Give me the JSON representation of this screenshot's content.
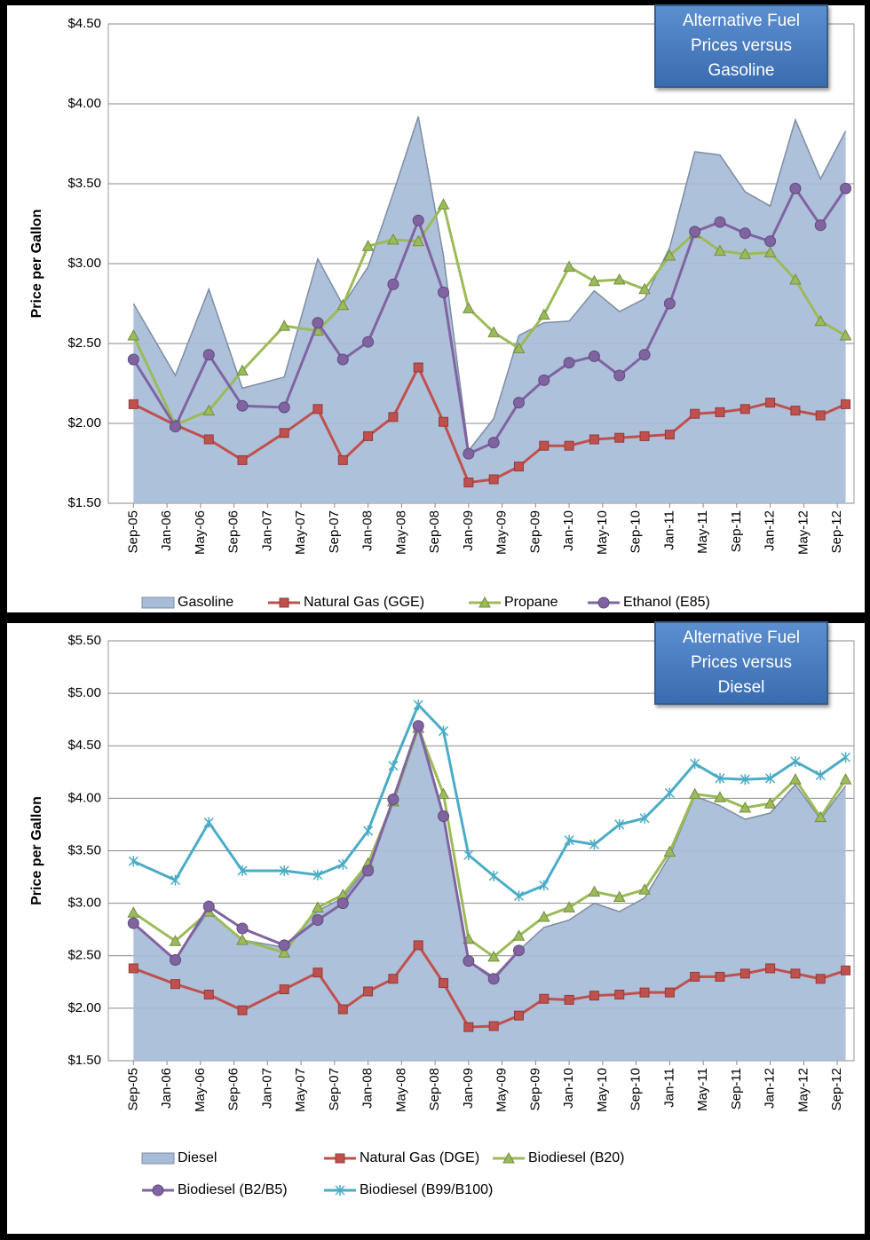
{
  "chart_data": [
    {
      "type": "line",
      "title": "Alternative Fuel Prices versus Gasoline",
      "ylabel": "Price per Gallon",
      "x": [
        "2005-09",
        "2006-02",
        "2006-06",
        "2006-10",
        "2007-03",
        "2007-07",
        "2007-10",
        "2008-01",
        "2008-04",
        "2008-07",
        "2008-10",
        "2009-01",
        "2009-04",
        "2009-07",
        "2009-10",
        "2010-01",
        "2010-04",
        "2010-07",
        "2010-10",
        "2011-01",
        "2011-04",
        "2011-07",
        "2011-10",
        "2012-01",
        "2012-04",
        "2012-07",
        "2012-10"
      ],
      "xlim": [
        "2005-06",
        "2012-11"
      ],
      "xticks": [
        {
          "value": "2005-09",
          "label": "Sep-05"
        },
        {
          "value": "2006-01",
          "label": "Jan-06"
        },
        {
          "value": "2006-05",
          "label": "May-06"
        },
        {
          "value": "2006-09",
          "label": "Sep-06"
        },
        {
          "value": "2007-01",
          "label": "Jan-07"
        },
        {
          "value": "2007-05",
          "label": "May-07"
        },
        {
          "value": "2007-09",
          "label": "Sep-07"
        },
        {
          "value": "2008-01",
          "label": "Jan-08"
        },
        {
          "value": "2008-05",
          "label": "May-08"
        },
        {
          "value": "2008-09",
          "label": "Sep-08"
        },
        {
          "value": "2009-01",
          "label": "Jan-09"
        },
        {
          "value": "2009-05",
          "label": "May-09"
        },
        {
          "value": "2009-09",
          "label": "Sep-09"
        },
        {
          "value": "2010-01",
          "label": "Jan-10"
        },
        {
          "value": "2010-05",
          "label": "May-10"
        },
        {
          "value": "2010-09",
          "label": "Sep-10"
        },
        {
          "value": "2011-01",
          "label": "Jan-11"
        },
        {
          "value": "2011-05",
          "label": "May-11"
        },
        {
          "value": "2011-09",
          "label": "Sep-11"
        },
        {
          "value": "2012-01",
          "label": "Jan-12"
        },
        {
          "value": "2012-05",
          "label": "May-12"
        },
        {
          "value": "2012-09",
          "label": "Sep-12"
        }
      ],
      "ylim": [
        1.5,
        4.5
      ],
      "yticks": [
        {
          "value": 1.5,
          "label": "$1.50"
        },
        {
          "value": 2,
          "label": "$2.00"
        },
        {
          "value": 2.5,
          "label": "$2.50"
        },
        {
          "value": 3,
          "label": "$3.00"
        },
        {
          "value": 3.5,
          "label": "$3.50"
        },
        {
          "value": 4,
          "label": "$4.00"
        },
        {
          "value": 4.5,
          "label": "$4.50"
        }
      ],
      "grid": true,
      "series": [
        {
          "name": "Gasoline",
          "type": "area",
          "color": "#a7bcd8",
          "values": [
            2.75,
            2.3,
            2.84,
            2.22,
            2.29,
            3.03,
            2.74,
            2.98,
            3.44,
            3.92,
            3.05,
            1.83,
            2.03,
            2.55,
            2.63,
            2.64,
            2.83,
            2.7,
            2.78,
            3.1,
            3.7,
            3.68,
            3.45,
            3.36,
            3.9,
            3.53,
            3.83
          ]
        },
        {
          "name": "Natural Gas (GGE)",
          "marker": "square",
          "color": "#c0504d",
          "values": [
            2.12,
            1.99,
            1.9,
            1.77,
            1.94,
            2.09,
            1.77,
            1.92,
            2.04,
            2.35,
            2.01,
            1.63,
            1.65,
            1.73,
            1.86,
            1.86,
            1.9,
            1.91,
            1.92,
            1.93,
            2.06,
            2.07,
            2.09,
            2.13,
            2.08,
            2.05,
            2.12
          ]
        },
        {
          "name": "Propane",
          "marker": "triangle",
          "color": "#9bbb59",
          "values": [
            2.55,
            1.99,
            2.08,
            2.33,
            2.61,
            2.58,
            2.74,
            3.11,
            3.15,
            3.14,
            3.37,
            2.72,
            2.57,
            2.47,
            2.68,
            2.98,
            2.89,
            2.9,
            2.84,
            3.05,
            3.19,
            3.08,
            3.06,
            3.07,
            2.9,
            2.64,
            2.55
          ]
        },
        {
          "name": "Ethanol (E85)",
          "marker": "circle",
          "color": "#8064a2",
          "values": [
            2.4,
            1.98,
            2.43,
            2.11,
            2.1,
            2.63,
            2.4,
            2.51,
            2.87,
            3.27,
            2.82,
            1.81,
            1.88,
            2.13,
            2.27,
            2.38,
            2.42,
            2.3,
            2.43,
            2.75,
            3.2,
            3.26,
            3.19,
            3.14,
            3.47,
            3.24,
            3.47
          ]
        }
      ]
    },
    {
      "type": "line",
      "title": "Alternative Fuel Prices versus Diesel",
      "ylabel": "Price per Gallon",
      "x": [
        "2005-09",
        "2006-02",
        "2006-06",
        "2006-10",
        "2007-03",
        "2007-07",
        "2007-10",
        "2008-01",
        "2008-04",
        "2008-07",
        "2008-10",
        "2009-01",
        "2009-04",
        "2009-07",
        "2009-10",
        "2010-01",
        "2010-04",
        "2010-07",
        "2010-10",
        "2011-01",
        "2011-04",
        "2011-07",
        "2011-10",
        "2012-01",
        "2012-04",
        "2012-07",
        "2012-10"
      ],
      "xlim": [
        "2005-06",
        "2012-11"
      ],
      "xticks": [
        {
          "value": "2005-09",
          "label": "Sep-05"
        },
        {
          "value": "2006-01",
          "label": "Jan-06"
        },
        {
          "value": "2006-05",
          "label": "May-06"
        },
        {
          "value": "2006-09",
          "label": "Sep-06"
        },
        {
          "value": "2007-01",
          "label": "Jan-07"
        },
        {
          "value": "2007-05",
          "label": "May-07"
        },
        {
          "value": "2007-09",
          "label": "Sep-07"
        },
        {
          "value": "2008-01",
          "label": "Jan-08"
        },
        {
          "value": "2008-05",
          "label": "May-08"
        },
        {
          "value": "2008-09",
          "label": "Sep-08"
        },
        {
          "value": "2009-01",
          "label": "Jan-09"
        },
        {
          "value": "2009-05",
          "label": "May-09"
        },
        {
          "value": "2009-09",
          "label": "Sep-09"
        },
        {
          "value": "2010-01",
          "label": "Jan-10"
        },
        {
          "value": "2010-05",
          "label": "May-10"
        },
        {
          "value": "2010-09",
          "label": "Sep-10"
        },
        {
          "value": "2011-01",
          "label": "Jan-11"
        },
        {
          "value": "2011-05",
          "label": "May-11"
        },
        {
          "value": "2011-09",
          "label": "Sep-11"
        },
        {
          "value": "2012-01",
          "label": "Jan-12"
        },
        {
          "value": "2012-05",
          "label": "May-12"
        },
        {
          "value": "2012-09",
          "label": "Sep-12"
        }
      ],
      "ylim": [
        1.5,
        5.5
      ],
      "yticks": [
        {
          "value": 1.5,
          "label": "$1.50"
        },
        {
          "value": 2,
          "label": "$2.00"
        },
        {
          "value": 2.5,
          "label": "$2.50"
        },
        {
          "value": 3,
          "label": "$3.00"
        },
        {
          "value": 3.5,
          "label": "$3.50"
        },
        {
          "value": 4,
          "label": "$4.00"
        },
        {
          "value": 4.5,
          "label": "$4.50"
        },
        {
          "value": 5,
          "label": "$5.00"
        },
        {
          "value": 5.5,
          "label": "$5.50"
        }
      ],
      "grid": true,
      "series": [
        {
          "name": "Diesel",
          "type": "area",
          "color": "#a7bcd8",
          "values": [
            2.8,
            2.47,
            2.93,
            2.65,
            2.58,
            2.93,
            3.05,
            3.35,
            3.95,
            4.65,
            3.85,
            2.45,
            2.3,
            2.55,
            2.77,
            2.84,
            3.0,
            2.92,
            3.05,
            3.45,
            4.02,
            3.93,
            3.8,
            3.86,
            4.13,
            3.8,
            4.12
          ]
        },
        {
          "name": "Natural Gas (DGE)",
          "marker": "square",
          "color": "#c0504d",
          "values": [
            2.38,
            2.23,
            2.13,
            1.98,
            2.18,
            2.34,
            1.99,
            2.16,
            2.28,
            2.6,
            2.24,
            1.82,
            1.83,
            1.93,
            2.09,
            2.08,
            2.12,
            2.13,
            2.15,
            2.15,
            2.3,
            2.3,
            2.33,
            2.38,
            2.33,
            2.28,
            2.36
          ]
        },
        {
          "name": "Biodiesel (B20)",
          "marker": "triangle",
          "color": "#9bbb59",
          "values": [
            2.91,
            2.64,
            2.92,
            2.65,
            2.53,
            2.96,
            3.08,
            3.38,
            3.97,
            4.67,
            4.04,
            2.66,
            2.49,
            2.69,
            2.87,
            2.96,
            3.11,
            3.06,
            3.13,
            3.49,
            4.04,
            4.01,
            3.91,
            3.95,
            4.18,
            3.82,
            4.18
          ]
        },
        {
          "name": "Biodiesel (B2/B5)",
          "marker": "circle",
          "color": "#8064a2",
          "values": [
            2.81,
            2.46,
            2.97,
            2.76,
            2.6,
            2.84,
            3.0,
            3.31,
            3.99,
            4.69,
            3.83,
            2.45,
            2.28,
            2.55,
            null,
            null,
            null,
            null,
            null,
            null,
            null,
            null,
            null,
            null,
            null,
            null,
            null
          ]
        },
        {
          "name": "Biodiesel (B99/B100)",
          "marker": "star",
          "color": "#4bacc6",
          "values": [
            3.4,
            3.22,
            3.77,
            3.31,
            3.31,
            3.27,
            3.37,
            3.69,
            4.31,
            4.89,
            4.64,
            3.46,
            3.26,
            3.07,
            3.17,
            3.6,
            3.56,
            3.75,
            3.81,
            4.05,
            4.33,
            4.19,
            4.18,
            4.19,
            4.35,
            4.22,
            4.39
          ]
        }
      ]
    }
  ]
}
